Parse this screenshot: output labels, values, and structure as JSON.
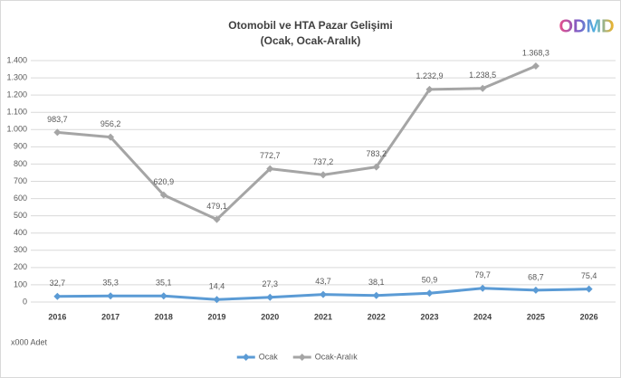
{
  "logo": "ODMD",
  "chart_data": {
    "type": "line",
    "title": "Otomobil ve HTA Pazar Gelişimi",
    "subtitle": "(Ocak, Ocak-Aralık)",
    "note": "x000 Adet",
    "categories": [
      "2016",
      "2017",
      "2018",
      "2019",
      "2020",
      "2021",
      "2022",
      "2023",
      "2024",
      "2025",
      "2026"
    ],
    "series": [
      {
        "name": "Ocak",
        "color": "#5b9bd5",
        "values": [
          32.7,
          35.3,
          35.1,
          14.4,
          27.3,
          43.7,
          38.1,
          50.9,
          79.7,
          68.7,
          75.4
        ],
        "value_labels": [
          "32,7",
          "35,3",
          "35,1",
          "14,4",
          "27,3",
          "43,7",
          "38,1",
          "50,9",
          "79,7",
          "68,7",
          "75,4"
        ]
      },
      {
        "name": "Ocak-Aralık",
        "color": "#a5a5a5",
        "values": [
          983.7,
          956.2,
          620.9,
          479.1,
          772.7,
          737.2,
          783.2,
          1232.9,
          1238.5,
          1368.3,
          null
        ],
        "value_labels": [
          "983,7",
          "956,2",
          "620,9",
          "479,1",
          "772,7",
          "737,2",
          "783,2",
          "1.232,9",
          "1.238,5",
          "1.368,3",
          null
        ]
      }
    ],
    "ylim": [
      0,
      1400
    ],
    "yticks": [
      0,
      100,
      200,
      300,
      400,
      500,
      600,
      700,
      800,
      900,
      {
        "value": 1000,
        "label": "1.000"
      },
      {
        "value": 1100,
        "label": "1.100"
      },
      {
        "value": 1200,
        "label": "1.200"
      },
      {
        "value": 1300,
        "label": "1.300"
      },
      {
        "value": 1400,
        "label": "1.400"
      }
    ],
    "grid": true,
    "legend": "bottom"
  }
}
